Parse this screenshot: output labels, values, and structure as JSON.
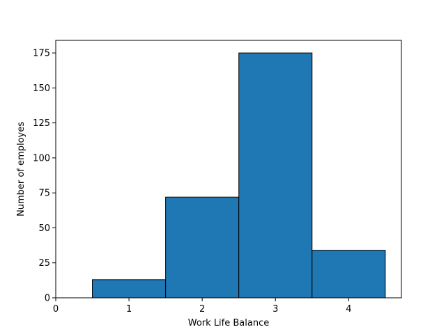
{
  "chart_data": {
    "type": "bar",
    "title": "",
    "xlabel": "Work Life Balance",
    "ylabel": "Number of employes",
    "bins": [
      {
        "x_start": 0.5,
        "x_end": 1.5,
        "value": 13
      },
      {
        "x_start": 1.5,
        "x_end": 2.5,
        "value": 72
      },
      {
        "x_start": 2.5,
        "x_end": 3.5,
        "value": 175
      },
      {
        "x_start": 3.5,
        "x_end": 4.5,
        "value": 34
      }
    ],
    "xlim": [
      0,
      4.72
    ],
    "ylim": [
      0,
      184
    ],
    "x_ticks": [
      0,
      1,
      2,
      3,
      4
    ],
    "y_ticks": [
      0,
      25,
      50,
      75,
      100,
      125,
      150,
      175
    ],
    "x_tick_labels": [
      "0",
      "1",
      "2",
      "3",
      "4"
    ],
    "y_tick_labels": [
      "0",
      "25",
      "50",
      "75",
      "100",
      "125",
      "150",
      "175"
    ],
    "grid": false,
    "bar_color": "#1f77b4",
    "edge_color": "#000000"
  }
}
